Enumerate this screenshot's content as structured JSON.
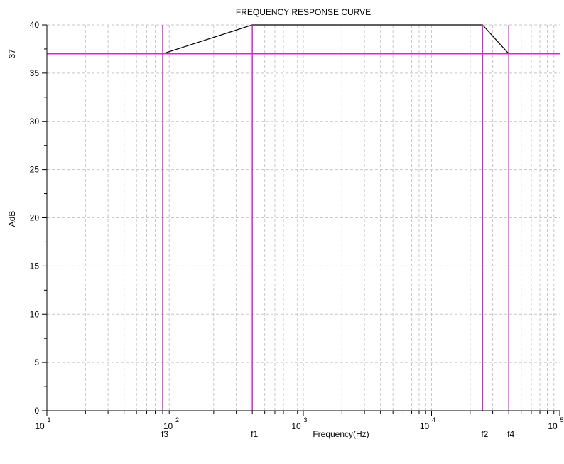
{
  "chart_data": {
    "type": "line",
    "title": "FREQUENCY RESPONSE CURVE",
    "xlabel": "Frequency(Hz)",
    "ylabel": "AdB",
    "x_scale": "log",
    "xlim": [
      10,
      100000
    ],
    "ylim": [
      0,
      40
    ],
    "grid": true,
    "x_ticks": [
      {
        "base": "10",
        "exp": "1",
        "value": 10
      },
      {
        "base": "10",
        "exp": "2",
        "value": 100
      },
      {
        "base": "10",
        "exp": "3",
        "value": 1000
      },
      {
        "base": "10",
        "exp": "4",
        "value": 10000
      },
      {
        "base": "10",
        "exp": "5",
        "value": 100000
      }
    ],
    "y_ticks": [
      "0",
      "5",
      "10",
      "15",
      "20",
      "25",
      "30",
      "35",
      "40"
    ],
    "y_marker": {
      "label": "37",
      "value": 37,
      "color": "#e020e0"
    },
    "series": [
      {
        "color": "#000000",
        "points": [
          [
            80,
            37
          ],
          [
            400,
            40
          ],
          [
            25000,
            40
          ],
          [
            40000,
            37
          ]
        ]
      }
    ],
    "markers": [
      {
        "label": "f3",
        "x": 80
      },
      {
        "label": "f1",
        "x": 400
      },
      {
        "label": "f2",
        "x": 25000
      },
      {
        "label": "f4",
        "x": 40000
      }
    ],
    "marker_color": "#e020e0"
  }
}
